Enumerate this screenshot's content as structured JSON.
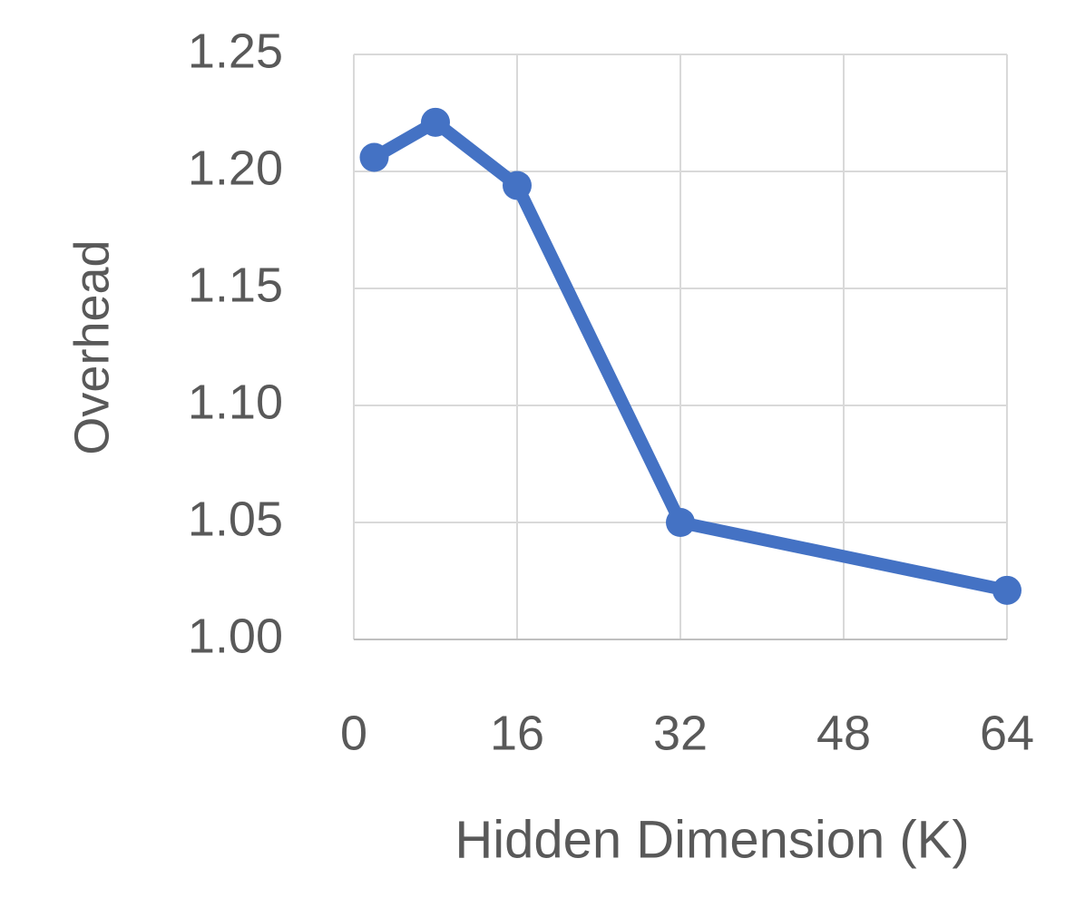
{
  "chart_data": {
    "type": "line",
    "x_label": "Hidden Dimension (K)",
    "y_label": "Overhead",
    "x": [
      2,
      8,
      16,
      32,
      64
    ],
    "series": [
      {
        "name": "Overhead",
        "color": "#4472c4",
        "values": [
          1.206,
          1.221,
          1.194,
          1.05,
          1.021
        ]
      }
    ],
    "xlim": [
      0,
      64
    ],
    "xticks": [
      0,
      16,
      32,
      48,
      64
    ],
    "ylim": [
      1.0,
      1.25
    ],
    "yticks": [
      {
        "value": 1.0,
        "label": "1.00"
      },
      1.05,
      {
        "value": 1.1,
        "label": "1.10"
      },
      1.15,
      {
        "value": 1.2,
        "label": "1.20"
      },
      1.25
    ],
    "grid": true
  }
}
